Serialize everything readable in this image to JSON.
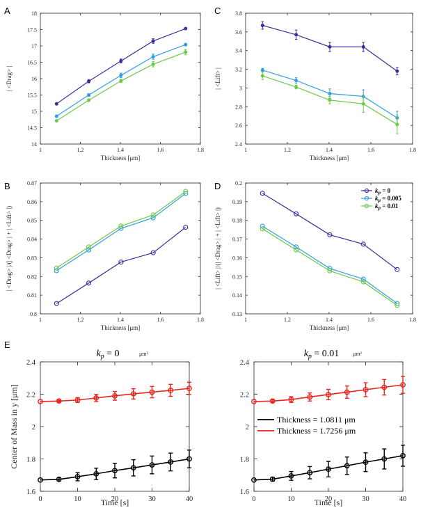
{
  "colors": {
    "k0": "#3b2c9e",
    "k0005": "#2f9ee0",
    "k001": "#6cc94a",
    "thin": "#000000",
    "thick": "#e8231f"
  },
  "legend_cd": {
    "prefix": "k",
    "sub": "p",
    "items": [
      " = 0",
      " = 0.005",
      " = 0.01"
    ]
  },
  "legend_e": {
    "items": [
      "Thickness = 1.0811 μm",
      "Thickness = 1.7256 μm"
    ]
  },
  "chart_data": [
    {
      "id": "A",
      "panel_label": "A",
      "type": "line",
      "xlabel": "Thickness [μm]",
      "ylabel": "| <Drag> |",
      "xlim": [
        1,
        1.8
      ],
      "ylim": [
        14,
        18
      ],
      "xticks": [
        "1",
        "1.2",
        "1.4",
        "1.6",
        "1.8"
      ],
      "yticks": [
        "14",
        "14.5",
        "15",
        "15.5",
        "16",
        "16.5",
        "17",
        "17.5",
        "18"
      ],
      "marker": "dot",
      "x": [
        1.081,
        1.242,
        1.403,
        1.564,
        1.726
      ],
      "series": [
        {
          "name": "k_p = 0",
          "values": [
            15.23,
            15.92,
            16.54,
            17.15,
            17.53
          ],
          "err": [
            0.03,
            0.05,
            0.06,
            0.07,
            0.03
          ]
        },
        {
          "name": "k_p = 0.005",
          "values": [
            14.85,
            15.5,
            16.1,
            16.67,
            17.04
          ],
          "err": [
            0.03,
            0.04,
            0.07,
            0.08,
            0.04
          ]
        },
        {
          "name": "k_p = 0.01",
          "values": [
            14.71,
            15.34,
            15.93,
            16.44,
            16.81
          ],
          "err": [
            0.03,
            0.04,
            0.05,
            0.08,
            0.08
          ]
        }
      ]
    },
    {
      "id": "C",
      "panel_label": "C",
      "type": "line",
      "xlabel": "Thickness [μm]",
      "ylabel": "| <Lift> |",
      "xlim": [
        1,
        1.8
      ],
      "ylim": [
        2.4,
        3.8
      ],
      "xticks": [
        "1",
        "1.2",
        "1.4",
        "1.6",
        "1.8"
      ],
      "yticks": [
        "2.4",
        "2.6",
        "2.8",
        "3",
        "3.2",
        "3.4",
        "3.6",
        "3.8"
      ],
      "marker": "dot",
      "x": [
        1.081,
        1.242,
        1.403,
        1.564,
        1.726
      ],
      "series": [
        {
          "name": "k_p = 0",
          "values": [
            3.67,
            3.57,
            3.44,
            3.44,
            3.18
          ],
          "err": [
            0.04,
            0.05,
            0.05,
            0.05,
            0.04
          ]
        },
        {
          "name": "k_p = 0.005",
          "values": [
            3.19,
            3.08,
            2.94,
            2.91,
            2.68
          ],
          "err": [
            0.02,
            0.03,
            0.05,
            0.07,
            0.07
          ]
        },
        {
          "name": "k_p = 0.01",
          "values": [
            3.13,
            3.01,
            2.87,
            2.83,
            2.61
          ],
          "err": [
            0.04,
            0.02,
            0.04,
            0.09,
            0.1
          ]
        }
      ]
    },
    {
      "id": "B",
      "panel_label": "B",
      "type": "line",
      "xlabel": "Thickness [μm]",
      "ylabel": "| <Drag> |/(| <Drag> | + | <Lift> |)",
      "xlim": [
        1,
        1.8
      ],
      "ylim": [
        0.8,
        0.87
      ],
      "xticks": [
        "1",
        "1.2",
        "1.4",
        "1.6",
        "1.8"
      ],
      "yticks": [
        "0.8",
        "0.81",
        "0.82",
        "0.83",
        "0.84",
        "0.85",
        "0.86",
        "0.87"
      ],
      "marker": "circle",
      "x": [
        1.081,
        1.242,
        1.403,
        1.564,
        1.726
      ],
      "series": [
        {
          "name": "k_p = 0",
          "values": [
            0.8055,
            0.8165,
            0.8277,
            0.8327,
            0.8463
          ]
        },
        {
          "name": "k_p = 0.005",
          "values": [
            0.8231,
            0.8342,
            0.8457,
            0.8514,
            0.8644
          ]
        },
        {
          "name": "k_p = 0.01",
          "values": [
            0.8245,
            0.8358,
            0.847,
            0.8529,
            0.8655
          ]
        }
      ]
    },
    {
      "id": "D",
      "panel_label": "D",
      "type": "line",
      "xlabel": "Thickness [μm]",
      "ylabel": "| <Lift> |/(| <Drag> | + | <Lift> |)",
      "xlim": [
        1,
        1.8
      ],
      "ylim": [
        0.13,
        0.2
      ],
      "xticks": [
        "1",
        "1.2",
        "1.4",
        "1.6",
        "1.8"
      ],
      "yticks": [
        "0.13",
        "0.14",
        "0.15",
        "0.16",
        "0.17",
        "0.18",
        "0.19",
        "0.2"
      ],
      "marker": "circle",
      "x": [
        1.081,
        1.242,
        1.403,
        1.564,
        1.726
      ],
      "series": [
        {
          "name": "k_p = 0",
          "values": [
            0.1945,
            0.1835,
            0.1723,
            0.1673,
            0.1537
          ]
        },
        {
          "name": "k_p = 0.005",
          "values": [
            0.1769,
            0.1658,
            0.1543,
            0.1486,
            0.1356
          ]
        },
        {
          "name": "k_p = 0.01",
          "values": [
            0.1755,
            0.1642,
            0.153,
            0.1471,
            0.1345
          ]
        }
      ]
    },
    {
      "id": "E1",
      "panel_label": "E",
      "type": "line",
      "title": "k",
      "title_sub": "p",
      "title_rest": " = 0",
      "title_unit": "μm²",
      "xlabel": "Time [s]",
      "ylabel": "Center of Mass in y [μm]",
      "xlim": [
        0,
        40
      ],
      "ylim": [
        1.6,
        2.4
      ],
      "xticks": [
        "0",
        "10",
        "20",
        "30",
        "40"
      ],
      "yticks": [
        "1.6",
        "1.8",
        "2",
        "2.2",
        "2.4"
      ],
      "marker": "circle",
      "x": [
        0,
        5,
        10,
        15,
        20,
        25,
        30,
        35,
        40
      ],
      "series": [
        {
          "name": "Thickness = 1.0811 μm",
          "values": [
            1.67,
            1.674,
            1.69,
            1.708,
            1.728,
            1.745,
            1.763,
            1.781,
            1.8
          ],
          "err": [
            0,
            0.01,
            0.025,
            0.035,
            0.045,
            0.05,
            0.055,
            0.055,
            0.055
          ]
        },
        {
          "name": "Thickness = 1.7256 μm",
          "values": [
            2.155,
            2.158,
            2.164,
            2.177,
            2.19,
            2.202,
            2.213,
            2.224,
            2.236
          ],
          "err": [
            0,
            0.006,
            0.015,
            0.022,
            0.027,
            0.032,
            0.035,
            0.037,
            0.038
          ]
        }
      ]
    },
    {
      "id": "E2",
      "panel_label": "",
      "type": "line",
      "title": "k",
      "title_sub": "p",
      "title_rest": " = 0.01",
      "title_unit": "μm²",
      "xlabel": "Time [s]",
      "ylabel": "",
      "xlim": [
        0,
        40
      ],
      "ylim": [
        1.6,
        2.4
      ],
      "xticks": [
        "0",
        "10",
        "20",
        "30",
        "40"
      ],
      "yticks": [
        "1.6",
        "1.8",
        "2",
        "2.2",
        "2.4"
      ],
      "marker": "circle",
      "x": [
        0,
        5,
        10,
        15,
        20,
        25,
        30,
        35,
        40
      ],
      "series": [
        {
          "name": "Thickness = 1.0811 μm",
          "values": [
            1.67,
            1.675,
            1.695,
            1.715,
            1.737,
            1.758,
            1.78,
            1.8,
            1.82
          ],
          "err": [
            0,
            0.012,
            0.027,
            0.038,
            0.048,
            0.054,
            0.058,
            0.062,
            0.065
          ]
        },
        {
          "name": "Thickness = 1.7256 μm",
          "values": [
            2.155,
            2.158,
            2.167,
            2.183,
            2.198,
            2.213,
            2.228,
            2.243,
            2.258
          ],
          "err": [
            0,
            0.008,
            0.018,
            0.025,
            0.032,
            0.038,
            0.043,
            0.048,
            0.052
          ]
        }
      ]
    }
  ]
}
